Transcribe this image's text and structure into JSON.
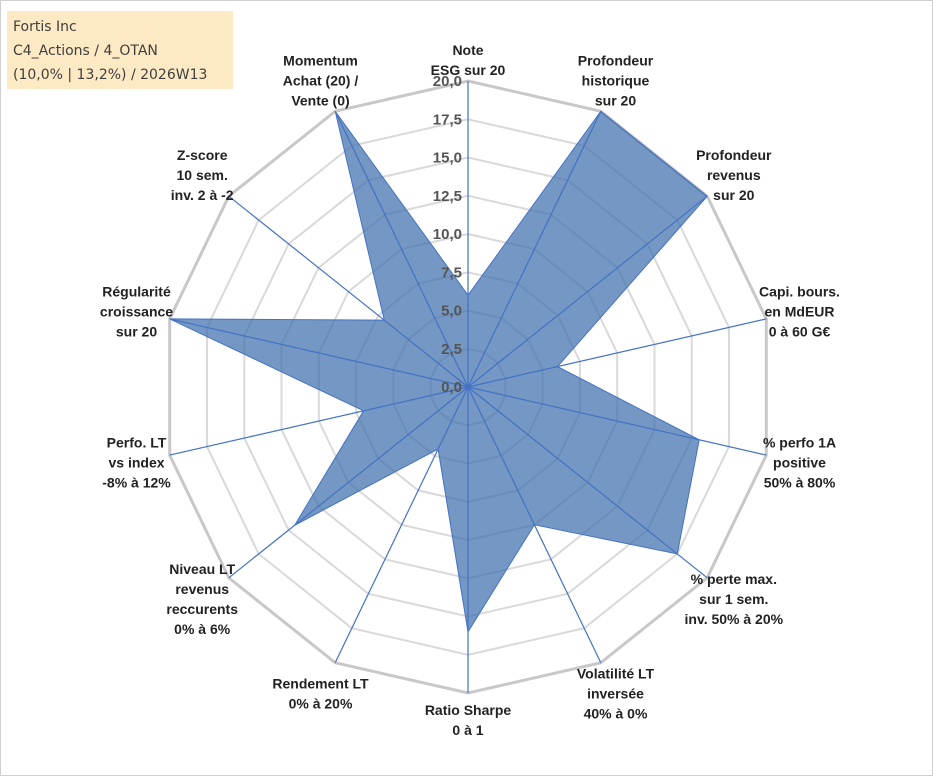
{
  "info": {
    "line1": "Fortis Inc",
    "line2": "C4_Actions / 4_OTAN",
    "line3": "(10,0% | 13,2%) / 2026W13"
  },
  "chart_data": {
    "type": "radar",
    "title": "",
    "rmin": 0,
    "rmax": 20,
    "ticks": [
      "0,0",
      "2,5",
      "5,0",
      "7,5",
      "10,0",
      "12,5",
      "15,0",
      "17,5",
      "20,0"
    ],
    "axes": [
      {
        "label": [
          "Note",
          "ESG sur 20"
        ],
        "value": 6
      },
      {
        "label": [
          "Profondeur",
          "historique",
          "sur 20"
        ],
        "value": 20
      },
      {
        "label": [
          "Profondeur",
          "revenus",
          "sur 20"
        ],
        "value": 20
      },
      {
        "label": [
          "Capi. bours.",
          "en MdEUR",
          "0 à 60 G€"
        ],
        "value": 6
      },
      {
        "label": [
          "% perfo 1A",
          "positive",
          "50% à 80%"
        ],
        "value": 15.5
      },
      {
        "label": [
          "% perte max.",
          "sur 1 sem.",
          "inv. 50% à 20%"
        ],
        "value": 17.5
      },
      {
        "label": [
          "Volatilité LT",
          "inversée",
          "40% à 0%"
        ],
        "value": 10
      },
      {
        "label": [
          "Ratio Sharpe",
          "0 à 1"
        ],
        "value": 16
      },
      {
        "label": [
          "Rendement LT",
          "0% à 20%"
        ],
        "value": 4.5
      },
      {
        "label": [
          "Niveau LT",
          "revenus",
          "reccurents",
          "0% à 6%"
        ],
        "value": 14.5
      },
      {
        "label": [
          "Perfo. LT",
          "vs index",
          "-8% à 12%"
        ],
        "value": 7
      },
      {
        "label": [
          "Régularité",
          "croissance",
          "sur 20"
        ],
        "value": 20
      },
      {
        "label": [
          "Z-score",
          "10 sem.",
          "inv. 2 à -2"
        ],
        "value": 7
      },
      {
        "label": [
          "Momentum",
          "Achat (20) /",
          "Vente (0)"
        ],
        "value": 20
      }
    ],
    "colors": {
      "fill": "#3f6fad",
      "line": "#4472c4",
      "outer_ring": "#c8c8c8",
      "grid": "#d9d9d9"
    }
  }
}
